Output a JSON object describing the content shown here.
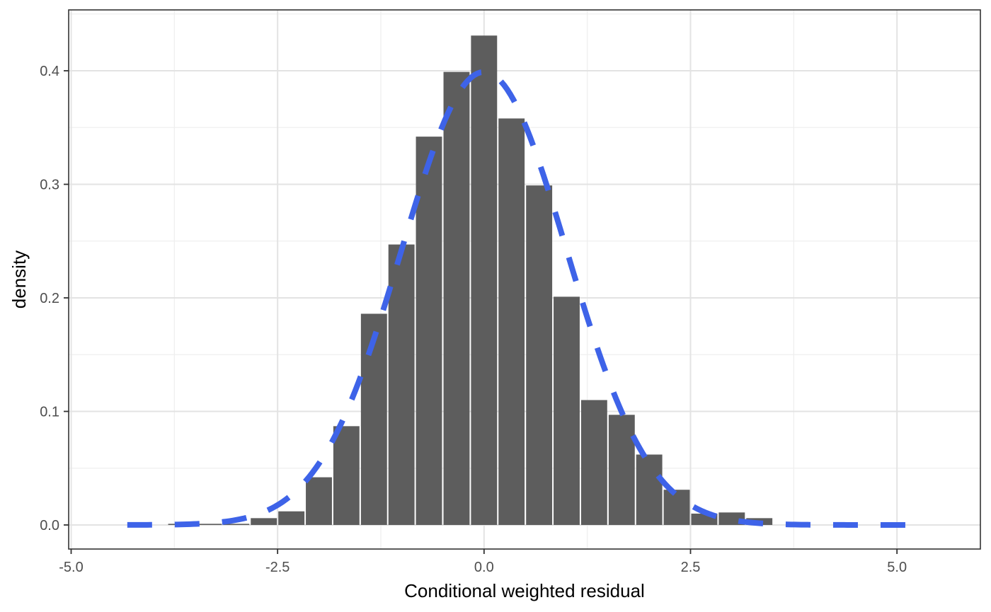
{
  "chart_data": {
    "type": "bar",
    "subtype": "histogram-with-normal-curve",
    "title": "",
    "xlabel": "Conditional weighted residual",
    "ylabel": "density",
    "x_ticks": [
      -5.0,
      -2.5,
      0.0,
      2.5,
      5.0
    ],
    "x_tick_labels": [
      "-5.0",
      "-2.5",
      "0.0",
      "2.5",
      "5.0"
    ],
    "x_minor_ticks": [
      -3.75,
      -1.25,
      1.25,
      3.75
    ],
    "y_ticks": [
      0.0,
      0.1,
      0.2,
      0.3,
      0.4
    ],
    "y_tick_labels": [
      "0.0",
      "0.1",
      "0.2",
      "0.3",
      "0.4"
    ],
    "y_minor_ticks": [
      0.05,
      0.15,
      0.25,
      0.35,
      0.45
    ],
    "xlim": [
      -5.03,
      6.01
    ],
    "ylim": [
      -0.0212,
      0.4536
    ],
    "grid": "on",
    "legend": "none",
    "histogram": {
      "binwidth": 0.3333,
      "bin_centers": [
        -3.667,
        -3.333,
        -3.0,
        -2.667,
        -2.333,
        -2.0,
        -1.667,
        -1.333,
        -1.0,
        -0.667,
        -0.333,
        0.0,
        0.333,
        0.667,
        1.0,
        1.333,
        1.667,
        2.0,
        2.333,
        2.667,
        3.0,
        3.333
      ],
      "densities": [
        0.001,
        0.001,
        0.001,
        0.006,
        0.012,
        0.042,
        0.087,
        0.186,
        0.247,
        0.342,
        0.399,
        0.431,
        0.358,
        0.299,
        0.201,
        0.11,
        0.097,
        0.062,
        0.031,
        0.01,
        0.011,
        0.006
      ],
      "fill_color": "#5d5d5d",
      "separator_color": "#ffffff"
    },
    "normal_curve": {
      "mean": 0,
      "sd": 1,
      "x_from": -4.32,
      "x_to": 5.39,
      "peak_density": 0.3989,
      "color": "#3e63e8",
      "style": "dashed",
      "stroke_width": 8,
      "dash_length": 35,
      "gap_length": 32
    },
    "colors": {
      "panel_background": "#ffffff",
      "panel_border": "#333333",
      "grid_major": "#e3e3e3",
      "grid_minor": "#efefef",
      "tick_mark": "#333333",
      "tick_label": "#4d4d4d",
      "axis_title": "#000000"
    }
  }
}
